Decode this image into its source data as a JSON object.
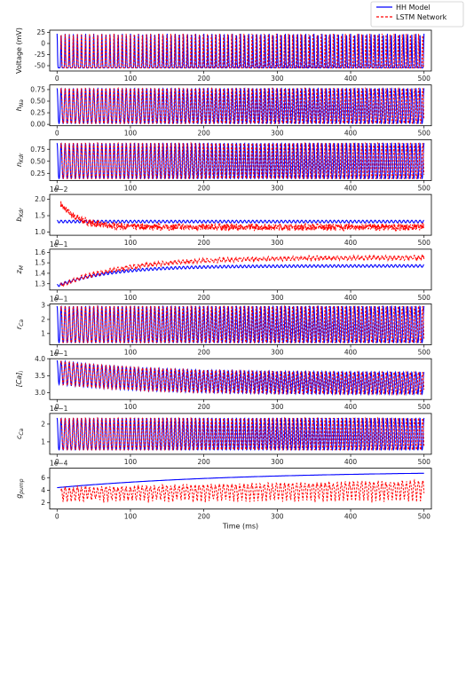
{
  "legend": {
    "items": [
      {
        "label": "HH Model",
        "color": "#0000ff",
        "dash": "solid"
      },
      {
        "label": "LSTM Network",
        "color": "#ff0000",
        "dash": "dashed"
      }
    ],
    "placement": "top-right"
  },
  "chart_data": {
    "type": "line",
    "xlabel": "Time (ms)",
    "xlim": [
      -10,
      510
    ],
    "xticks": [
      0,
      100,
      200,
      300,
      400,
      500
    ],
    "colors": {
      "hh": "#0000ff",
      "lstm": "#ff0000"
    },
    "panels": [
      {
        "ylabel": "Voltage (mV)",
        "multiplier": "",
        "ylim": [
          -62,
          30
        ],
        "yticks": [
          "25",
          "0",
          "-25",
          "-50"
        ],
        "ytick_values": [
          25,
          0,
          -25,
          -50
        ],
        "kind": "spike",
        "low": -55,
        "high": 22,
        "lstm_low": -55,
        "lstm_high": 22,
        "cycles": 90
      },
      {
        "ylabel": "h_Na",
        "multiplier": "",
        "ylim": [
          -0.03,
          0.85
        ],
        "yticks": [
          "0.00",
          "0.25",
          "0.50",
          "0.75"
        ],
        "ytick_values": [
          0,
          0.25,
          0.5,
          0.75
        ],
        "kind": "osc",
        "low": 0.02,
        "high": 0.78,
        "lstm_low": 0.02,
        "lstm_high": 0.78,
        "cycles": 90
      },
      {
        "ylabel": "n_Kdr",
        "multiplier": "",
        "ylim": [
          0.1,
          0.95
        ],
        "yticks": [
          "0.25",
          "0.50",
          "0.75"
        ],
        "ytick_values": [
          0.25,
          0.5,
          0.75
        ],
        "kind": "osc",
        "low": 0.14,
        "high": 0.88,
        "lstm_low": 0.14,
        "lstm_high": 0.88,
        "cycles": 90
      },
      {
        "ylabel": "b_Kdr",
        "multiplier": "1e−2",
        "ylim": [
          0.9,
          2.15
        ],
        "yticks": [
          "1.0",
          "1.5",
          "2.0"
        ],
        "ytick_values": [
          1.0,
          1.5,
          2.0
        ],
        "kind": "band",
        "hh_low": 1.28,
        "hh_high": 1.36,
        "lstm_start": 2.0,
        "lstm_end": 1.15,
        "lstm_amp": 0.12
      },
      {
        "ylabel": "z_M",
        "multiplier": "1e−1",
        "ylim": [
          1.24,
          1.63
        ],
        "yticks": [
          "1.3",
          "1.4",
          "1.5",
          "1.6"
        ],
        "ytick_values": [
          1.3,
          1.4,
          1.5,
          1.6
        ],
        "kind": "rise",
        "hh_start": 1.28,
        "hh_end": 1.47,
        "hh_amp": 0.025,
        "lstm_start": 1.27,
        "lstm_end": 1.55,
        "lstm_amp": 0.03
      },
      {
        "ylabel": "r_Ca",
        "multiplier": "1e−1",
        "ylim": [
          0.2,
          3.1
        ],
        "yticks": [
          "1",
          "2",
          "3"
        ],
        "ytick_values": [
          1,
          2,
          3
        ],
        "kind": "osc",
        "low": 0.35,
        "high": 2.95,
        "lstm_low": 0.35,
        "lstm_high": 2.95,
        "cycles": 90
      },
      {
        "ylabel": "[Ca]_i",
        "multiplier": "1e−1",
        "ylim": [
          2.8,
          4.0
        ],
        "yticks": [
          "3.0",
          "3.5",
          "4.0"
        ],
        "ytick_values": [
          3.0,
          3.5,
          4.0
        ],
        "kind": "decay",
        "start_high": 3.95,
        "start_low": 3.25,
        "end_high": 3.6,
        "end_low": 2.95,
        "cycles": 90
      },
      {
        "ylabel": "c_Ca",
        "multiplier": "1e−1",
        "ylim": [
          0.3,
          2.6
        ],
        "yticks": [
          "1",
          "2"
        ],
        "ytick_values": [
          1,
          2
        ],
        "kind": "osc",
        "low": 0.55,
        "high": 2.35,
        "lstm_low": 0.55,
        "lstm_high": 2.35,
        "cycles": 90
      },
      {
        "ylabel": "g_pump",
        "multiplier": "1e−4",
        "ylim": [
          1.0,
          7.5
        ],
        "yticks": [
          "2",
          "4",
          "6"
        ],
        "ytick_values": [
          2,
          4,
          6
        ],
        "kind": "pump",
        "hh_start": 4.4,
        "hh_end": 6.7,
        "lstm_top_start": 4.3,
        "lstm_top_end": 5.4,
        "lstm_bottom": 2.3
      }
    ],
    "x_tick_labels": [
      "0",
      "100",
      "200",
      "300",
      "400",
      "500"
    ]
  }
}
